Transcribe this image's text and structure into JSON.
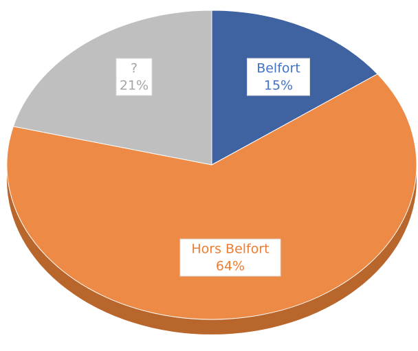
{
  "chart_data": {
    "type": "pie",
    "categories": [
      "Belfort",
      "Hors Belfort",
      "?"
    ],
    "values": [
      15,
      64,
      21
    ],
    "value_labels": [
      "15%",
      "64%",
      "21%"
    ],
    "colors": [
      "#3f62a0",
      "#ed8a45",
      "#bfbfbf"
    ],
    "label_colors": [
      "#4472c4",
      "#ed7d31",
      "#a5a5a5"
    ]
  }
}
